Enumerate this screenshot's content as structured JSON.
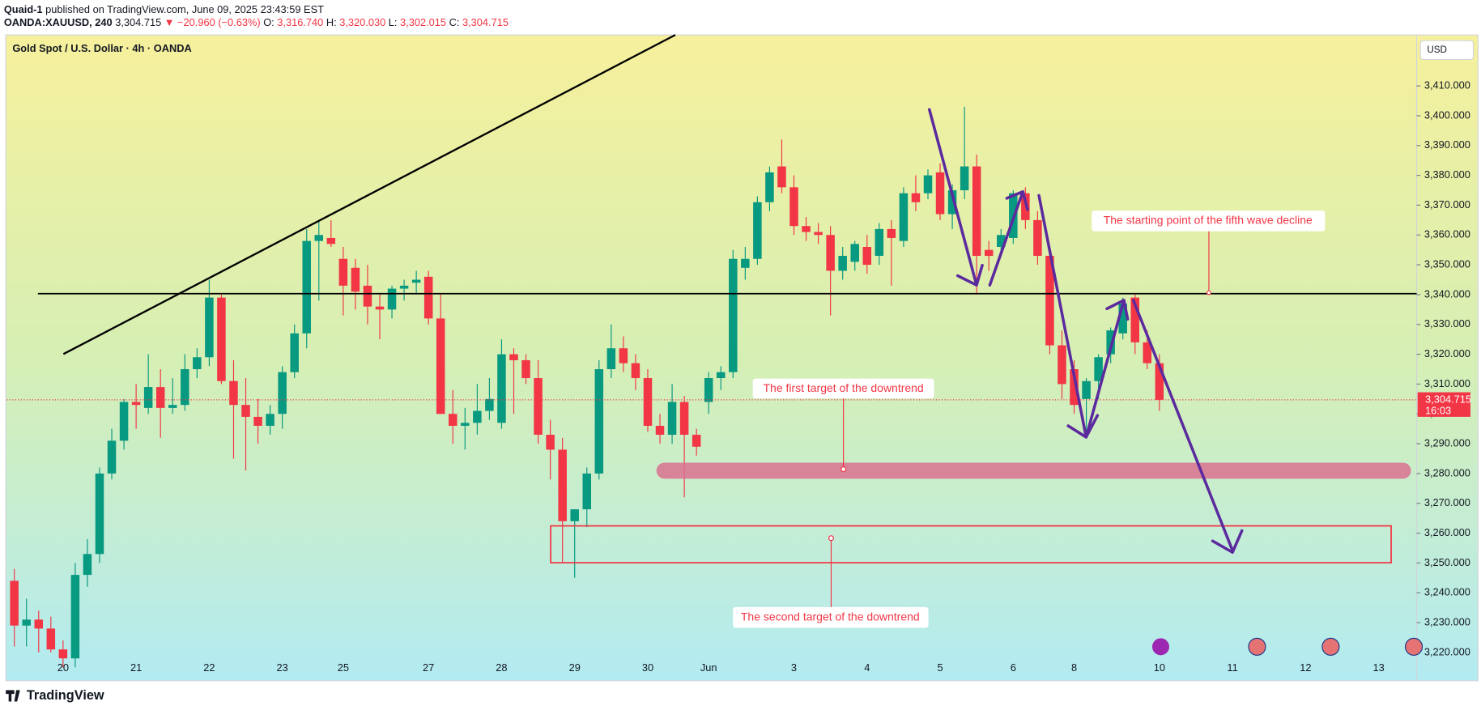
{
  "header": {
    "author": "Quaid-1",
    "published": "published on TradingView.com, June 09, 2025 23:43:59 EST",
    "symbol": "OANDA:XAUUSD, 240",
    "price": "3,304.715",
    "change": "▼ −20.960 (−0.63%)",
    "ohlc": [
      {
        "key": "O:",
        "value": "3,316.740"
      },
      {
        "key": "H:",
        "value": "3,320.030"
      },
      {
        "key": "L:",
        "value": "3,302.015"
      },
      {
        "key": "C:",
        "value": "3,304.715"
      }
    ]
  },
  "footer": {
    "brand": "TradingView"
  },
  "chart_data": {
    "type": "candlestick",
    "title": "Gold Spot / U.S. Dollar · 4h · OANDA",
    "currency": "USD",
    "up_color": "#089981",
    "down_color": "#f23645",
    "categories": [
      null,
      null,
      null,
      null,
      "20",
      null,
      null,
      null,
      null,
      null,
      "21",
      null,
      null,
      null,
      null,
      null,
      "22",
      null,
      null,
      null,
      null,
      null,
      "23",
      null,
      null,
      null,
      null,
      "25",
      null,
      null,
      null,
      null,
      null,
      null,
      "27",
      null,
      null,
      null,
      null,
      null,
      "28",
      null,
      null,
      null,
      null,
      null,
      "29",
      null,
      null,
      null,
      null,
      null,
      "30",
      null,
      null,
      null,
      null,
      "Jun",
      null,
      null,
      null,
      null,
      null,
      null,
      "3",
      null,
      null,
      null,
      null,
      null,
      "4",
      null,
      null,
      null,
      null,
      null,
      "5",
      null,
      null,
      null,
      null,
      null,
      "6",
      null,
      null,
      null,
      null,
      "8",
      null,
      null,
      null,
      null,
      null,
      null,
      "10",
      null,
      null,
      null,
      null,
      null,
      "11",
      null,
      null,
      null,
      null,
      null,
      "12",
      null,
      null,
      null,
      null,
      null,
      "13"
    ],
    "open": [
      3244,
      3229,
      3231,
      3228,
      3221,
      3218,
      3246,
      3253,
      3280,
      3291,
      3304,
      3302,
      3309,
      3302,
      3303,
      3315,
      3319,
      3339,
      3311,
      3303,
      3299,
      3296,
      3300,
      3314,
      3327,
      3358,
      3359,
      3352,
      3349,
      3343,
      3336,
      3335,
      3342,
      3344,
      3346,
      3332,
      3300,
      3296,
      3297,
      3301,
      3297,
      3320,
      3318,
      3312,
      3293,
      3288,
      3264,
      3268,
      3280,
      3315,
      3322,
      3317,
      3312,
      3296,
      3293,
      3304,
      3293,
      3304,
      3312,
      3314,
      3349,
      3352,
      3371,
      3383,
      3376,
      3363,
      3361,
      3360,
      3348,
      3351,
      3356,
      3353,
      3362,
      3358,
      3374,
      3374,
      3381,
      3367,
      3375,
      3383,
      3355,
      3356,
      3359,
      3374,
      3365,
      3353,
      3323,
      3315,
      3305,
      3311,
      3320,
      3327,
      3339,
      3324,
      3317,
      null,
      null,
      null,
      null,
      null,
      null,
      null,
      null,
      null,
      null,
      null,
      null,
      null,
      null,
      null,
      null,
      null,
      null
    ],
    "high": [
      3248,
      3238,
      3234,
      3232,
      3224,
      3250,
      3258,
      3282,
      3295,
      3305,
      3310,
      3320,
      3315,
      3312,
      3320,
      3322,
      3345,
      3340,
      3318,
      3312,
      3305,
      3303,
      3316,
      3330,
      3362,
      3365,
      3365,
      3356,
      3352,
      3350,
      3340,
      3343,
      3345,
      3348,
      3348,
      3340,
      3308,
      3302,
      3310,
      3312,
      3325,
      3322,
      3320,
      3318,
      3298,
      3292,
      3268,
      3282,
      3318,
      3330,
      3326,
      3320,
      3315,
      3300,
      3310,
      3306,
      3295,
      3314,
      3316,
      3355,
      3356,
      3373,
      3383,
      3392,
      3380,
      3366,
      3364,
      3363,
      3356,
      3358,
      3360,
      3364,
      3365,
      3376,
      3380,
      3382,
      3384,
      3377,
      3403,
      3387,
      3358,
      3362,
      3375,
      3376,
      3368,
      3356,
      3328,
      3318,
      3312,
      3320,
      3329,
      3339,
      3340,
      3328,
      3320,
      null,
      null,
      null,
      null,
      null,
      null,
      null,
      null,
      null,
      null,
      null,
      null,
      null,
      null,
      null,
      null,
      null,
      null
    ],
    "low": [
      3222,
      3222,
      3220,
      3220,
      3215,
      3215,
      3242,
      3250,
      3278,
      3288,
      3295,
      3300,
      3292,
      3300,
      3301,
      3312,
      3316,
      3310,
      3285,
      3281,
      3290,
      3293,
      3295,
      3312,
      3322,
      3338,
      3356,
      3333,
      3335,
      3330,
      3325,
      3332,
      3338,
      3340,
      3330,
      3300,
      3290,
      3288,
      3293,
      3298,
      3295,
      3300,
      3310,
      3290,
      3278,
      3250,
      3245,
      3262,
      3278,
      3312,
      3314,
      3308,
      3294,
      3290,
      3290,
      3272,
      3286,
      3300,
      3308,
      3312,
      3345,
      3350,
      3368,
      3374,
      3360,
      3358,
      3357,
      3333,
      3345,
      3348,
      3347,
      3350,
      3343,
      3356,
      3368,
      3372,
      3365,
      3362,
      3372,
      3340,
      3348,
      3354,
      3357,
      3362,
      3350,
      3320,
      3305,
      3300,
      3292,
      3305,
      3317,
      3325,
      3320,
      3315,
      3301,
      null,
      null,
      null,
      null,
      null,
      null,
      null,
      null,
      null,
      null,
      null,
      null,
      null,
      null,
      null,
      null,
      null,
      null
    ],
    "close": [
      3229,
      3231,
      3228,
      3221,
      3218,
      3246,
      3253,
      3280,
      3291,
      3304,
      3303,
      3309,
      3302,
      3303,
      3315,
      3319,
      3339,
      3311,
      3303,
      3299,
      3296,
      3300,
      3314,
      3327,
      3358,
      3360,
      3357,
      3343,
      3341,
      3336,
      3335,
      3342,
      3343,
      3345,
      3332,
      3300,
      3296,
      3297,
      3301,
      3305,
      3320,
      3318,
      3312,
      3293,
      3288,
      3264,
      3268,
      3280,
      3315,
      3322,
      3317,
      3312,
      3296,
      3293,
      3304,
      3293,
      3289,
      3312,
      3314,
      3352,
      3352,
      3371,
      3381,
      3376,
      3363,
      3361,
      3360,
      3348,
      3353,
      3357,
      3350,
      3362,
      3359,
      3374,
      3371,
      3380,
      3367,
      3375,
      3383,
      3353,
      3353,
      3360,
      3374,
      3365,
      3353,
      3323,
      3310,
      3303,
      3311,
      3319,
      3328,
      3337,
      3324,
      3317,
      3304.715,
      null,
      null,
      null,
      null,
      null,
      null,
      null,
      null,
      null,
      null,
      null,
      null,
      null,
      null,
      null,
      null,
      null,
      null
    ],
    "ylim": [
      3210.5,
      3427.1
    ],
    "yticks": [
      {
        "value": 3220,
        "label": "3,220.000"
      },
      {
        "value": 3230,
        "label": "3,230.000"
      },
      {
        "value": 3240,
        "label": "3,240.000"
      },
      {
        "value": 3250,
        "label": "3,250.000"
      },
      {
        "value": 3260,
        "label": "3,260.000"
      },
      {
        "value": 3270,
        "label": "3,270.000"
      },
      {
        "value": 3280,
        "label": "3,280.000"
      },
      {
        "value": 3290,
        "label": "3,290.000"
      },
      {
        "value": 3300,
        "label": "3,300.000"
      },
      {
        "value": 3310,
        "label": "3,310.000"
      },
      {
        "value": 3320,
        "label": "3,320.000"
      },
      {
        "value": 3330,
        "label": "3,330.000"
      },
      {
        "value": 3340,
        "label": "3,340.000"
      },
      {
        "value": 3350,
        "label": "3,350.000"
      },
      {
        "value": 3360,
        "label": "3,360.000"
      },
      {
        "value": 3370,
        "label": "3,370.000"
      },
      {
        "value": 3380,
        "label": "3,380.000"
      },
      {
        "value": 3390,
        "label": "3,390.000"
      },
      {
        "value": 3400,
        "label": "3,400.000"
      },
      {
        "value": 3410,
        "label": "3,410.000"
      }
    ],
    "last_price": {
      "value": 3304.715,
      "label": "3,304.715"
    },
    "countdown": "16:03",
    "annotations": [
      "The starting point of the fifth wave decline",
      "The first target of the downtrend",
      "The second target of the downtrend"
    ]
  }
}
